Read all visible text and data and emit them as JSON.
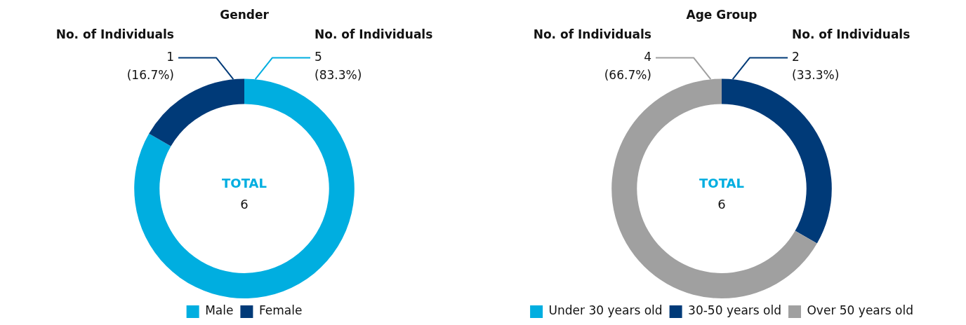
{
  "chart_data": [
    {
      "type": "donut",
      "title": "Gender",
      "categories": [
        "Male",
        "Female"
      ],
      "values": [
        5,
        1
      ],
      "colors": [
        "#00aee0",
        "#003a78"
      ],
      "value_labels": [
        "No. of Individuals\n5\n(83.3%)",
        "No. of Individuals\n1\n(16.7%)"
      ],
      "annotations": [
        "TOTAL",
        "6"
      ],
      "legend": "bottom"
    },
    {
      "type": "donut",
      "title": "Age Group",
      "categories": [
        "Under 30 years old",
        "30-50 years old",
        "Over 50 years old"
      ],
      "values": [
        0,
        2,
        4
      ],
      "colors": [
        "#00aee0",
        "#003a78",
        "#a0a0a0"
      ],
      "value_labels": [
        null,
        "No. of Individuals\n2\n(33.3%)",
        "No. of Individuals\n4\n(66.7%)"
      ],
      "annotations": [
        "TOTAL",
        "6"
      ],
      "legend": "bottom"
    }
  ]
}
